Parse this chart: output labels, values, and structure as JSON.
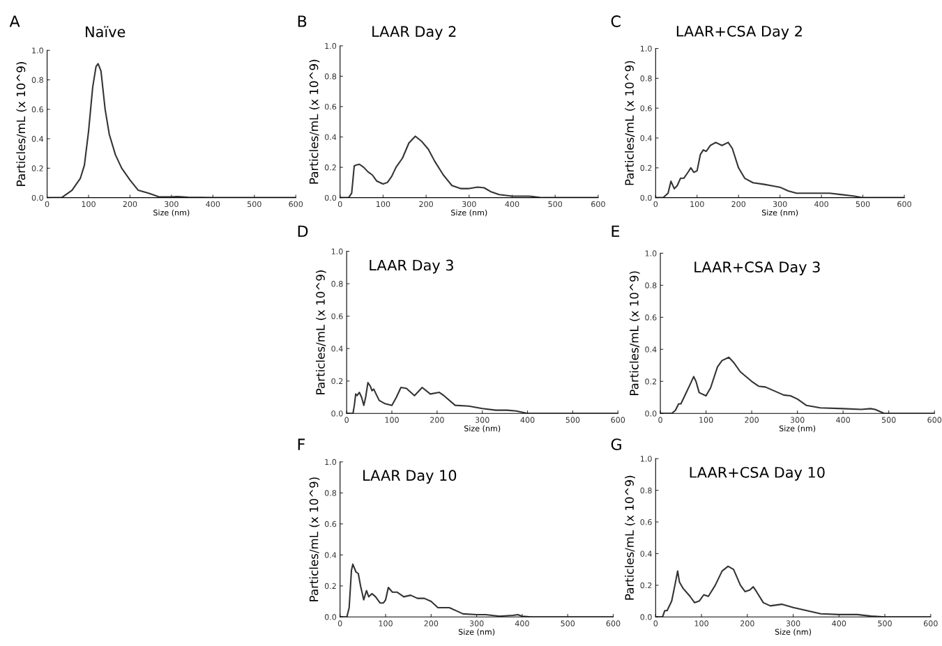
{
  "chart_data": [
    {
      "type": "line",
      "title": "Naïve",
      "annotations": [
        "A"
      ],
      "xlabel": "Size (nm)",
      "ylabel": "Particles/mL (x 10^9)",
      "xlim": [
        0,
        600
      ],
      "ylim": [
        0,
        1.0
      ],
      "xticks": [
        0,
        100,
        200,
        300,
        400,
        500,
        600
      ],
      "yticks": [
        {
          "value": 0,
          "label": "0.0"
        },
        {
          "value": 0.2,
          "label": "0.2"
        },
        {
          "value": 0.4,
          "label": "0.4"
        },
        {
          "value": 0.6,
          "label": "0.6"
        },
        {
          "value": 0.8,
          "label": "0.8"
        },
        {
          "value": 1.0,
          "label": "1.0"
        }
      ],
      "grid": false,
      "legend": false,
      "series": [
        {
          "color": "#333333",
          "x": [
            0,
            35,
            60,
            80,
            90,
            100,
            110,
            118,
            123,
            130,
            140,
            150,
            165,
            180,
            200,
            220,
            245,
            270,
            300,
            315,
            340,
            400,
            600
          ],
          "values": [
            0,
            0,
            0.05,
            0.13,
            0.22,
            0.45,
            0.75,
            0.89,
            0.91,
            0.86,
            0.6,
            0.43,
            0.29,
            0.2,
            0.12,
            0.05,
            0.03,
            0.005,
            0.005,
            0.008,
            0.003,
            0.001,
            0
          ]
        }
      ]
    },
    {
      "type": "line",
      "title": "LAAR Day 2",
      "annotations": [
        "B"
      ],
      "xlabel": "Size (nm)",
      "ylabel": "Particles/mL (x 10^9)",
      "xlim": [
        0,
        600
      ],
      "ylim": [
        0,
        1.0
      ],
      "xticks": [
        0,
        100,
        200,
        300,
        400,
        500,
        600
      ],
      "yticks": [
        {
          "value": 0,
          "label": "0.0"
        },
        {
          "value": 0.2,
          "label": "0.2"
        },
        {
          "value": 0.4,
          "label": "0.4"
        },
        {
          "value": 0.6,
          "label": "0.6"
        },
        {
          "value": 0.8,
          "label": "0.8"
        },
        {
          "value": 1.0,
          "label": "1.0"
        }
      ],
      "grid": false,
      "legend": false,
      "series": [
        {
          "color": "#333333",
          "x": [
            0,
            20,
            27,
            33,
            38,
            45,
            55,
            65,
            75,
            85,
            100,
            110,
            120,
            130,
            145,
            160,
            175,
            190,
            205,
            220,
            240,
            260,
            280,
            300,
            320,
            335,
            350,
            370,
            400,
            440,
            470,
            600
          ],
          "values": [
            0,
            0,
            0.03,
            0.21,
            0.215,
            0.22,
            0.2,
            0.17,
            0.15,
            0.11,
            0.09,
            0.1,
            0.14,
            0.2,
            0.26,
            0.36,
            0.405,
            0.37,
            0.32,
            0.24,
            0.15,
            0.08,
            0.06,
            0.06,
            0.07,
            0.065,
            0.04,
            0.02,
            0.01,
            0.01,
            0,
            0
          ]
        }
      ]
    },
    {
      "type": "line",
      "title": "LAAR+CSA Day 2",
      "annotations": [
        "C"
      ],
      "xlabel": "Size (nm)",
      "ylabel": "Particles/mL (x 10^9)",
      "xlim": [
        0,
        600
      ],
      "ylim": [
        0,
        1.0
      ],
      "xticks": [
        0,
        100,
        200,
        300,
        400,
        500,
        600
      ],
      "yticks": [
        {
          "value": 0,
          "label": "0.0"
        },
        {
          "value": 0.2,
          "label": "0.2"
        },
        {
          "value": 0.4,
          "label": "0.4"
        },
        {
          "value": 0.6,
          "label": "0.6"
        },
        {
          "value": 0.8,
          "label": "0.8"
        },
        {
          "value": 1.0,
          "label": "1.0"
        }
      ],
      "grid": false,
      "legend": false,
      "series": [
        {
          "color": "#333333",
          "x": [
            0,
            18,
            22,
            30,
            37,
            45,
            52,
            60,
            68,
            78,
            85,
            92,
            100,
            108,
            115,
            122,
            132,
            145,
            160,
            175,
            185,
            200,
            215,
            235,
            260,
            280,
            300,
            320,
            340,
            360,
            390,
            420,
            450,
            480,
            500,
            600
          ],
          "values": [
            0,
            0,
            0.01,
            0.03,
            0.11,
            0.06,
            0.08,
            0.13,
            0.13,
            0.17,
            0.2,
            0.17,
            0.18,
            0.29,
            0.32,
            0.31,
            0.35,
            0.37,
            0.35,
            0.37,
            0.33,
            0.2,
            0.13,
            0.1,
            0.09,
            0.08,
            0.07,
            0.045,
            0.03,
            0.03,
            0.03,
            0.03,
            0.02,
            0.01,
            0,
            0
          ]
        }
      ]
    },
    {
      "type": "line",
      "title": "LAAR Day 3",
      "annotations": [
        "D"
      ],
      "xlabel": "Size (nm)",
      "ylabel": "Particles/mL (x 10^9)",
      "xlim": [
        0,
        600
      ],
      "ylim": [
        0,
        1.0
      ],
      "xticks": [
        0,
        100,
        200,
        300,
        400,
        500,
        600
      ],
      "yticks": [
        {
          "value": 0,
          "label": "0.0"
        },
        {
          "value": 0.2,
          "label": "0.2"
        },
        {
          "value": 0.4,
          "label": "0.4"
        },
        {
          "value": 0.6,
          "label": "0.6"
        },
        {
          "value": 0.8,
          "label": "0.8"
        },
        {
          "value": 1.0,
          "label": "1.0"
        }
      ],
      "grid": false,
      "legend": false,
      "series": [
        {
          "color": "#333333",
          "x": [
            0,
            14,
            17,
            20,
            23,
            28,
            33,
            38,
            42,
            47,
            52,
            56,
            60,
            65,
            72,
            85,
            100,
            110,
            120,
            132,
            150,
            167,
            185,
            205,
            215,
            240,
            270,
            300,
            330,
            355,
            375,
            400,
            600
          ],
          "values": [
            0,
            0,
            0.05,
            0.12,
            0.11,
            0.13,
            0.1,
            0.05,
            0.1,
            0.19,
            0.17,
            0.14,
            0.15,
            0.12,
            0.08,
            0.06,
            0.05,
            0.1,
            0.16,
            0.155,
            0.11,
            0.16,
            0.12,
            0.13,
            0.11,
            0.05,
            0.045,
            0.03,
            0.02,
            0.02,
            0.015,
            0,
            0
          ]
        }
      ]
    },
    {
      "type": "line",
      "title": "LAAR+CSA Day 3",
      "annotations": [
        "E"
      ],
      "xlabel": "Size (nm)",
      "ylabel": "Particles/mL (x 10^9)",
      "xlim": [
        0,
        600
      ],
      "ylim": [
        0,
        1.0
      ],
      "xticks": [
        0,
        100,
        200,
        300,
        400,
        500,
        600
      ],
      "yticks": [
        {
          "value": 0,
          "label": "0.0"
        },
        {
          "value": 0.2,
          "label": "0.2"
        },
        {
          "value": 0.4,
          "label": "0.4"
        },
        {
          "value": 0.6,
          "label": "0.6"
        },
        {
          "value": 0.8,
          "label": "0.8"
        },
        {
          "value": 1.0,
          "label": "1.0"
        }
      ],
      "grid": false,
      "legend": false,
      "series": [
        {
          "color": "#333333",
          "x": [
            0,
            25,
            33,
            40,
            45,
            55,
            65,
            73,
            78,
            85,
            100,
            110,
            125,
            135,
            150,
            160,
            175,
            200,
            215,
            230,
            250,
            270,
            285,
            300,
            320,
            350,
            400,
            440,
            460,
            470,
            490,
            600
          ],
          "values": [
            0,
            0,
            0.02,
            0.06,
            0.06,
            0.12,
            0.18,
            0.23,
            0.2,
            0.13,
            0.11,
            0.16,
            0.29,
            0.33,
            0.35,
            0.32,
            0.26,
            0.2,
            0.17,
            0.165,
            0.14,
            0.115,
            0.11,
            0.09,
            0.05,
            0.035,
            0.03,
            0.025,
            0.03,
            0.025,
            0,
            0
          ]
        }
      ]
    },
    {
      "type": "line",
      "title": "LAAR Day 10",
      "annotations": [
        "F"
      ],
      "xlabel": "Size (nm)",
      "ylabel": "Particles/mL (x 10^9)",
      "xlim": [
        0,
        600
      ],
      "ylim": [
        0,
        1.0
      ],
      "xticks": [
        0,
        100,
        200,
        300,
        400,
        500,
        600
      ],
      "yticks": [
        {
          "value": 0,
          "label": "0.0"
        },
        {
          "value": 0.2,
          "label": "0.2"
        },
        {
          "value": 0.4,
          "label": "0.4"
        },
        {
          "value": 0.6,
          "label": "0.6"
        },
        {
          "value": 0.8,
          "label": "0.8"
        },
        {
          "value": 1.0,
          "label": "1.0"
        }
      ],
      "grid": false,
      "legend": false,
      "series": [
        {
          "color": "#333333",
          "x": [
            0,
            15,
            20,
            25,
            28,
            35,
            40,
            45,
            52,
            58,
            63,
            70,
            78,
            88,
            95,
            100,
            106,
            115,
            125,
            140,
            155,
            170,
            185,
            200,
            215,
            240,
            255,
            270,
            300,
            320,
            350,
            380,
            390,
            400,
            420,
            600
          ],
          "values": [
            0,
            0,
            0.06,
            0.3,
            0.34,
            0.29,
            0.28,
            0.2,
            0.11,
            0.17,
            0.13,
            0.15,
            0.13,
            0.09,
            0.09,
            0.11,
            0.19,
            0.16,
            0.16,
            0.13,
            0.14,
            0.12,
            0.12,
            0.1,
            0.06,
            0.06,
            0.04,
            0.02,
            0.015,
            0.015,
            0.005,
            0.01,
            0.015,
            0.005,
            0,
            0
          ]
        }
      ]
    },
    {
      "type": "line",
      "title": "LAAR+CSA Day 10",
      "annotations": [
        "G"
      ],
      "xlabel": "Size (nm)",
      "ylabel": "Particles/mL (x 10^9)",
      "xlim": [
        0,
        600
      ],
      "ylim": [
        0,
        1.0
      ],
      "xticks": [
        0,
        100,
        200,
        300,
        400,
        500,
        600
      ],
      "yticks": [
        {
          "value": 0,
          "label": "0.0"
        },
        {
          "value": 0.2,
          "label": "0.2"
        },
        {
          "value": 0.4,
          "label": "0.4"
        },
        {
          "value": 0.6,
          "label": "0.6"
        },
        {
          "value": 0.8,
          "label": "0.8"
        },
        {
          "value": 1.0,
          "label": "1.0"
        }
      ],
      "grid": false,
      "legend": false,
      "series": [
        {
          "color": "#333333",
          "x": [
            0,
            15,
            20,
            25,
            35,
            42,
            48,
            52,
            60,
            75,
            85,
            95,
            105,
            115,
            130,
            145,
            158,
            170,
            185,
            195,
            205,
            213,
            220,
            235,
            250,
            275,
            300,
            330,
            360,
            400,
            440,
            470,
            500,
            600
          ],
          "values": [
            0,
            0,
            0.04,
            0.04,
            0.1,
            0.2,
            0.29,
            0.22,
            0.18,
            0.13,
            0.09,
            0.1,
            0.14,
            0.13,
            0.2,
            0.29,
            0.32,
            0.3,
            0.2,
            0.16,
            0.17,
            0.19,
            0.16,
            0.09,
            0.07,
            0.08,
            0.06,
            0.04,
            0.02,
            0.015,
            0.015,
            0.005,
            0,
            0
          ]
        }
      ]
    }
  ]
}
